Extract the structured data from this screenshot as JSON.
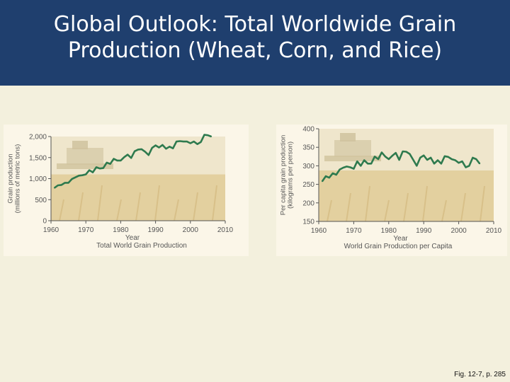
{
  "slide": {
    "title_line1": "Global Outlook: Total Worldwide Grain",
    "title_line2": "Production (Wheat, Corn, and Rice)",
    "caption": "Fig. 12-7, p. 285"
  },
  "colors": {
    "header": "#1f3f6e",
    "background": "#f3f0dd",
    "line": "#2e7a4e"
  },
  "chart_data": [
    {
      "type": "line",
      "title": "Total World Grain Production",
      "xlabel": "Year",
      "ylabel": "Grain production (millions of metric tons)",
      "ylabel_line1": "Grain production",
      "ylabel_line2": "(millions of metric tons)",
      "xlim": [
        1960,
        2010
      ],
      "ylim": [
        0,
        2000
      ],
      "x_ticks": [
        "1960",
        "1970",
        "1980",
        "1990",
        "2000",
        "2010"
      ],
      "y_ticks": [
        "0",
        "500",
        "1,000",
        "1,500",
        "2,000"
      ],
      "grid": false,
      "x": [
        1961,
        1962,
        1963,
        1964,
        1965,
        1966,
        1967,
        1968,
        1969,
        1970,
        1971,
        1972,
        1973,
        1974,
        1975,
        1976,
        1977,
        1978,
        1979,
        1980,
        1981,
        1982,
        1983,
        1984,
        1985,
        1986,
        1987,
        1988,
        1989,
        1990,
        1991,
        1992,
        1993,
        1994,
        1995,
        1996,
        1997,
        1998,
        1999,
        2000,
        2001,
        2002,
        2003,
        2004,
        2005,
        2006
      ],
      "values": [
        780,
        840,
        850,
        900,
        900,
        990,
        1030,
        1070,
        1080,
        1100,
        1200,
        1150,
        1270,
        1240,
        1250,
        1380,
        1350,
        1470,
        1430,
        1430,
        1510,
        1570,
        1490,
        1650,
        1690,
        1700,
        1640,
        1560,
        1730,
        1790,
        1740,
        1800,
        1710,
        1760,
        1720,
        1880,
        1890,
        1880,
        1880,
        1840,
        1880,
        1820,
        1870,
        2040,
        2030,
        2000
      ]
    },
    {
      "type": "line",
      "title": "World Grain Production per Capita",
      "xlabel": "Year",
      "ylabel": "Per capita grain production (kilograms per person)",
      "ylabel_line1": "Per capita grain production",
      "ylabel_line2": "(kilograms per person)",
      "xlim": [
        1960,
        2010
      ],
      "ylim": [
        150,
        400
      ],
      "x_ticks": [
        "1960",
        "1970",
        "1980",
        "1990",
        "2000",
        "2010"
      ],
      "y_ticks": [
        "150",
        "200",
        "250",
        "300",
        "350",
        "400"
      ],
      "grid": false,
      "x": [
        1961,
        1962,
        1963,
        1964,
        1965,
        1966,
        1967,
        1968,
        1969,
        1970,
        1971,
        1972,
        1973,
        1974,
        1975,
        1976,
        1977,
        1978,
        1979,
        1980,
        1981,
        1982,
        1983,
        1984,
        1985,
        1986,
        1987,
        1988,
        1989,
        1990,
        1991,
        1992,
        1993,
        1994,
        1995,
        1996,
        1997,
        1998,
        1999,
        2000,
        2001,
        2002,
        2003,
        2004,
        2005,
        2006
      ],
      "values": [
        258,
        272,
        268,
        280,
        276,
        290,
        295,
        298,
        296,
        292,
        312,
        300,
        315,
        306,
        306,
        325,
        318,
        336,
        325,
        318,
        327,
        335,
        316,
        339,
        338,
        332,
        316,
        300,
        322,
        328,
        316,
        322,
        306,
        315,
        306,
        326,
        324,
        318,
        315,
        308,
        312,
        296,
        300,
        322,
        318,
        306
      ]
    }
  ]
}
